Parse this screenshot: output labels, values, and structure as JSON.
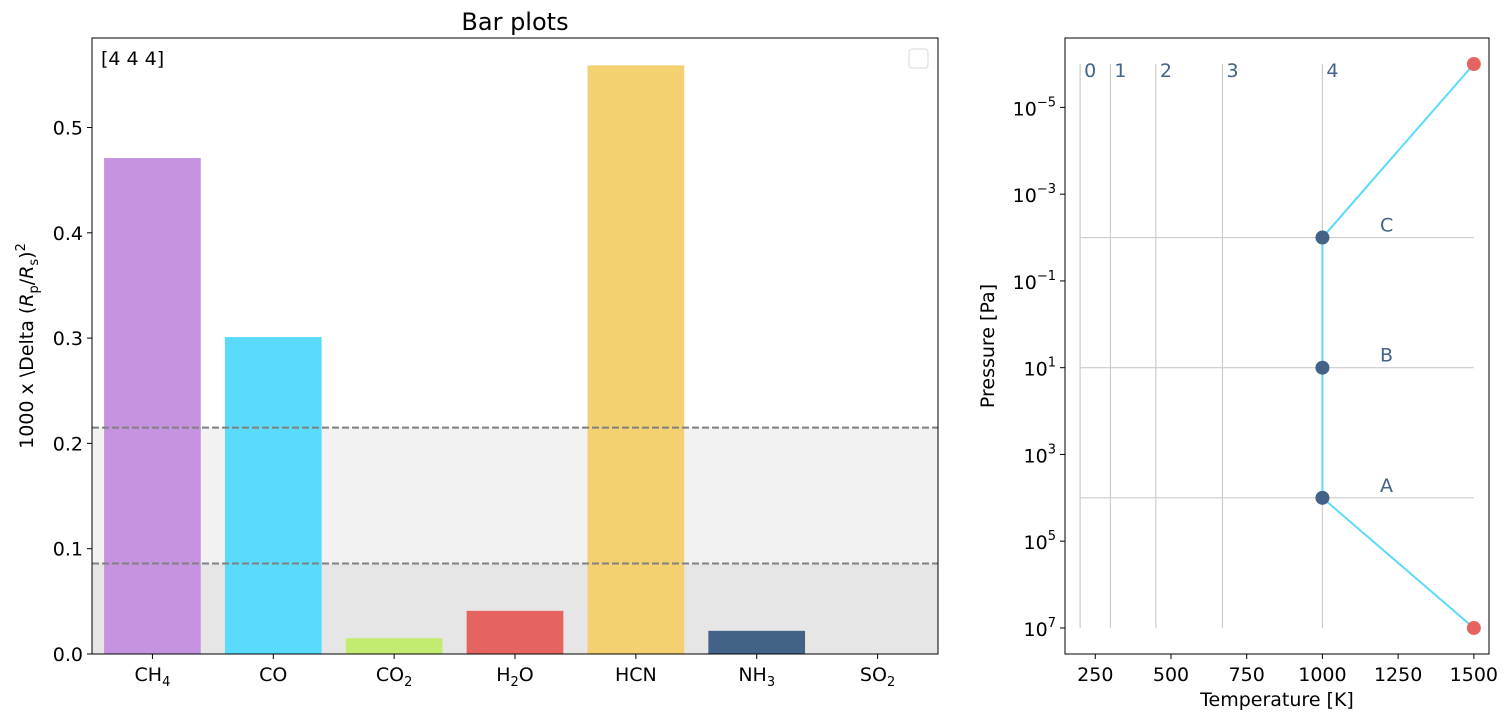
{
  "chart_data": [
    {
      "type": "bar",
      "title": "Bar plots",
      "corner_text": "[4 4 4]",
      "ylabel_text": "1000 x \\Delta (",
      "ylabel_math": {
        "R": "R",
        "p": "p",
        "s": "s",
        "exp": "2"
      },
      "ylim": [
        0,
        0.585
      ],
      "yticks": [
        "0.0",
        "0.1",
        "0.2",
        "0.3",
        "0.4",
        "0.5"
      ],
      "ytick_values": [
        0,
        0.1,
        0.2,
        0.3,
        0.4,
        0.5
      ],
      "categories": [
        {
          "base": "CH",
          "sub": "4",
          "after": ""
        },
        {
          "base": "CO",
          "sub": "",
          "after": ""
        },
        {
          "base": "CO",
          "sub": "2",
          "after": ""
        },
        {
          "base": "H",
          "sub": "2",
          "after": "O"
        },
        {
          "base": "HCN",
          "sub": "",
          "after": ""
        },
        {
          "base": "NH",
          "sub": "3",
          "after": ""
        },
        {
          "base": "SO",
          "sub": "2",
          "after": ""
        }
      ],
      "values": [
        0.471,
        0.301,
        0.015,
        0.041,
        0.559,
        0.022,
        0.0
      ],
      "colors": [
        "#c593df",
        "#5adbfc",
        "#c2ec6f",
        "#e6645f",
        "#f3d070",
        "#426387",
        "#ffffff"
      ],
      "noise_band_lower": 0.086,
      "noise_band_upper": 0.215,
      "band_colors": {
        "lower": "#e6e6e6",
        "upper": "#f2f2f2",
        "dashed": "#808080"
      },
      "grid": false,
      "legend": "top-right (empty)"
    },
    {
      "type": "line",
      "xlabel": "Temperature [K]",
      "ylabel": "Pressure [Pa]",
      "xlim": [
        150,
        1550
      ],
      "xticks": [
        "250",
        "500",
        "750",
        "1000",
        "1250",
        "1500"
      ],
      "xtick_values": [
        250,
        500,
        750,
        1000,
        1250,
        1500
      ],
      "ylog": true,
      "yinverted": true,
      "ylim": [
        -6.6,
        7.6
      ],
      "ytick_exponents": [
        "-5",
        "-3",
        "-1",
        "1",
        "3",
        "5",
        "7"
      ],
      "ytick_log_values": [
        -5,
        -3,
        -1,
        1,
        3,
        5,
        7
      ],
      "profile": {
        "temperature": [
          1500,
          1000,
          1000,
          1000,
          1500
        ],
        "log_pressure": [
          -6,
          -2,
          1,
          4,
          7
        ],
        "color": "#5adbfc"
      },
      "endpoints": {
        "color": "#e6645f",
        "points": [
          [
            1500,
            -6
          ],
          [
            1500,
            7
          ]
        ]
      },
      "knots": {
        "color": "#426387",
        "points": [
          [
            1000,
            -2
          ],
          [
            1000,
            1
          ],
          [
            1000,
            4
          ]
        ]
      },
      "horizontal_levels": [
        {
          "label": "C",
          "log_pressure": -2
        },
        {
          "label": "B",
          "log_pressure": 1
        },
        {
          "label": "A",
          "log_pressure": 4
        }
      ],
      "level_range_temperature": [
        200,
        1500
      ],
      "vertical_levels": [
        {
          "label": "0",
          "temperature": 200
        },
        {
          "label": "1",
          "temperature": 300
        },
        {
          "label": "2",
          "temperature": 450
        },
        {
          "label": "3",
          "temperature": 670
        },
        {
          "label": "4",
          "temperature": 1000
        }
      ],
      "vertical_top_log_pressure": -6,
      "vertical_bottom_log_pressure": 7,
      "annotation_color": "#426387",
      "guide_color": "#cccccc",
      "grid": false
    }
  ]
}
